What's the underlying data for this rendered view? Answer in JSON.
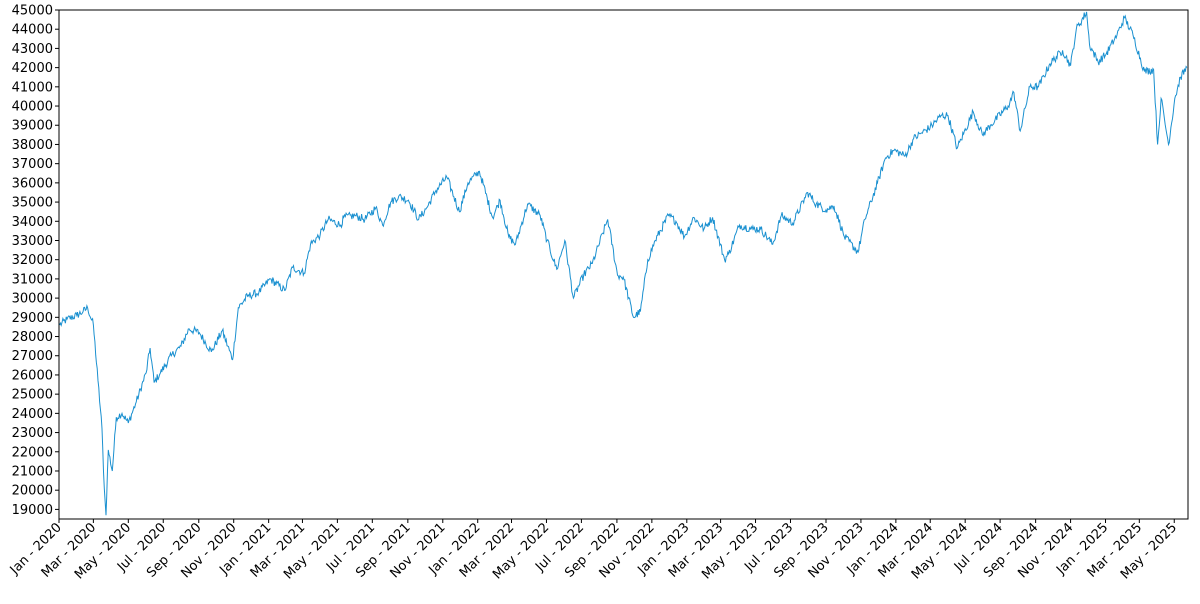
{
  "chart_data": {
    "type": "line",
    "title": "",
    "xlabel": "",
    "ylabel": "",
    "ylim": [
      18500,
      45000
    ],
    "y_ticks": [
      19000,
      20000,
      21000,
      22000,
      23000,
      24000,
      25000,
      26000,
      27000,
      28000,
      29000,
      30000,
      31000,
      32000,
      33000,
      34000,
      35000,
      36000,
      37000,
      38000,
      39000,
      40000,
      41000,
      42000,
      43000,
      44000,
      45000
    ],
    "x_ticks": [
      {
        "date": "2020-01-01",
        "label": "Jan - 2020"
      },
      {
        "date": "2020-03-01",
        "label": "Mar - 2020"
      },
      {
        "date": "2020-05-01",
        "label": "May - 2020"
      },
      {
        "date": "2020-07-01",
        "label": "Jul - 2020"
      },
      {
        "date": "2020-09-01",
        "label": "Sep - 2020"
      },
      {
        "date": "2020-11-01",
        "label": "Nov - 2020"
      },
      {
        "date": "2021-01-01",
        "label": "Jan - 2021"
      },
      {
        "date": "2021-03-01",
        "label": "Mar - 2021"
      },
      {
        "date": "2021-05-01",
        "label": "May - 2021"
      },
      {
        "date": "2021-07-01",
        "label": "Jul - 2021"
      },
      {
        "date": "2021-09-01",
        "label": "Sep - 2021"
      },
      {
        "date": "2021-11-01",
        "label": "Nov - 2021"
      },
      {
        "date": "2022-01-01",
        "label": "Jan - 2022"
      },
      {
        "date": "2022-03-01",
        "label": "Mar - 2022"
      },
      {
        "date": "2022-05-01",
        "label": "May - 2022"
      },
      {
        "date": "2022-07-01",
        "label": "Jul - 2022"
      },
      {
        "date": "2022-09-01",
        "label": "Sep - 2022"
      },
      {
        "date": "2022-11-01",
        "label": "Nov - 2022"
      },
      {
        "date": "2023-01-01",
        "label": "Jan - 2023"
      },
      {
        "date": "2023-03-01",
        "label": "Mar - 2023"
      },
      {
        "date": "2023-05-01",
        "label": "May - 2023"
      },
      {
        "date": "2023-07-01",
        "label": "Jul - 2023"
      },
      {
        "date": "2023-09-01",
        "label": "Sep - 2023"
      },
      {
        "date": "2023-11-01",
        "label": "Nov - 2023"
      },
      {
        "date": "2024-01-01",
        "label": "Jan - 2024"
      },
      {
        "date": "2024-03-01",
        "label": "Mar - 2024"
      },
      {
        "date": "2024-05-01",
        "label": "May - 2024"
      },
      {
        "date": "2024-07-01",
        "label": "Jul - 2024"
      },
      {
        "date": "2024-09-01",
        "label": "Sep - 2024"
      },
      {
        "date": "2024-11-01",
        "label": "Nov - 2024"
      },
      {
        "date": "2025-01-01",
        "label": "Jan - 2025"
      },
      {
        "date": "2025-03-01",
        "label": "Mar - 2025"
      },
      {
        "date": "2025-05-01",
        "label": "May - 2025"
      }
    ],
    "xlim": [
      "2020-01-01",
      "2025-05-25"
    ],
    "grid": false,
    "legend": "none",
    "line_color": "#1a90d0",
    "series": [
      {
        "x": [
          "2020-01-02",
          "2020-01-15",
          "2020-02-01",
          "2020-02-12",
          "2020-02-20",
          "2020-03-01",
          "2020-03-09",
          "2020-03-16",
          "2020-03-20",
          "2020-03-23",
          "2020-03-27",
          "2020-04-03",
          "2020-04-10",
          "2020-04-20",
          "2020-05-01",
          "2020-05-15",
          "2020-06-01",
          "2020-06-08",
          "2020-06-15",
          "2020-06-26",
          "2020-07-15",
          "2020-08-01",
          "2020-08-15",
          "2020-09-02",
          "2020-09-23",
          "2020-10-12",
          "2020-10-30",
          "2020-11-09",
          "2020-11-25",
          "2020-12-15",
          "2021-01-04",
          "2021-01-29",
          "2021-02-12",
          "2021-03-04",
          "2021-03-15",
          "2021-04-01",
          "2021-04-15",
          "2021-05-07",
          "2021-05-12",
          "2021-06-01",
          "2021-06-18",
          "2021-07-07",
          "2021-07-19",
          "2021-08-02",
          "2021-08-16",
          "2021-09-02",
          "2021-09-20",
          "2021-10-04",
          "2021-10-20",
          "2021-11-08",
          "2021-11-30",
          "2021-12-15",
          "2022-01-04",
          "2022-01-27",
          "2022-02-09",
          "2022-02-24",
          "2022-03-08",
          "2022-03-29",
          "2022-04-20",
          "2022-05-02",
          "2022-05-19",
          "2022-06-02",
          "2022-06-17",
          "2022-07-05",
          "2022-07-20",
          "2022-08-16",
          "2022-09-02",
          "2022-09-12",
          "2022-09-30",
          "2022-10-12",
          "2022-10-25",
          "2022-11-07",
          "2022-11-30",
          "2022-12-13",
          "2022-12-28",
          "2023-01-13",
          "2023-01-31",
          "2023-02-15",
          "2023-03-08",
          "2023-03-15",
          "2023-04-03",
          "2023-04-25",
          "2023-05-10",
          "2023-05-31",
          "2023-06-15",
          "2023-07-05",
          "2023-07-31",
          "2023-08-15",
          "2023-09-01",
          "2023-09-15",
          "2023-10-03",
          "2023-10-27",
          "2023-11-08",
          "2023-11-30",
          "2023-12-14",
          "2023-12-29",
          "2024-01-17",
          "2024-02-01",
          "2024-02-15",
          "2024-03-01",
          "2024-03-20",
          "2024-04-01",
          "2024-04-17",
          "2024-05-15",
          "2024-05-31",
          "2024-06-14",
          "2024-07-15",
          "2024-07-25",
          "2024-08-05",
          "2024-08-22",
          "2024-09-06",
          "2024-09-26",
          "2024-10-18",
          "2024-11-01",
          "2024-11-11",
          "2024-11-29",
          "2024-12-04",
          "2024-12-19",
          "2025-01-02",
          "2025-01-21",
          "2025-02-03",
          "2025-02-18",
          "2025-03-10",
          "2025-03-26",
          "2025-04-02",
          "2025-04-08",
          "2025-04-21",
          "2025-05-02",
          "2025-05-12",
          "2025-05-23"
        ],
        "values": [
          28600,
          28900,
          29100,
          29300,
          29500,
          28600,
          25700,
          23200,
          20100,
          18700,
          22100,
          21000,
          23800,
          24000,
          23500,
          24600,
          26100,
          27400,
          25600,
          26100,
          27000,
          27500,
          28400,
          28200,
          27200,
          28300,
          26800,
          29500,
          30100,
          30300,
          31000,
          30400,
          31600,
          31300,
          32800,
          33300,
          34100,
          33800,
          34200,
          34300,
          34100,
          34700,
          33800,
          35000,
          35300,
          35100,
          34100,
          34700,
          35600,
          36300,
          34500,
          36000,
          36600,
          34200,
          35100,
          33200,
          32800,
          34900,
          34300,
          33000,
          31500,
          33000,
          30000,
          31200,
          31800,
          34100,
          31200,
          31100,
          29000,
          29300,
          32000,
          33000,
          34300,
          34000,
          33200,
          34200,
          33600,
          34200,
          32000,
          32300,
          33800,
          33600,
          33600,
          32800,
          34300,
          33900,
          35500,
          34900,
          34600,
          34800,
          33200,
          32400,
          34100,
          36000,
          37300,
          37700,
          37400,
          38300,
          38600,
          38900,
          39500,
          39500,
          37800,
          39700,
          38500,
          39000,
          40000,
          40700,
          38700,
          41000,
          41000,
          42200,
          42900,
          42100,
          44000,
          44900,
          43200,
          42300,
          42700,
          43700,
          44600,
          43700,
          41800,
          41900,
          38000,
          40400,
          38000,
          40400,
          41500,
          42000
        ]
      }
    ]
  }
}
